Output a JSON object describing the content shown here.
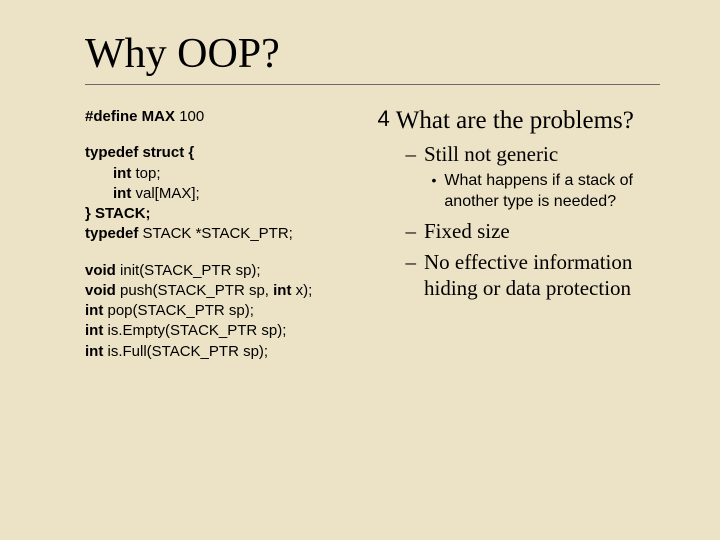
{
  "colors": {
    "background": "#ece2c6",
    "text": "#000000",
    "rule": "#6b6b6b"
  },
  "typography": {
    "title_font": "Times New Roman",
    "title_size_pt": 42,
    "code_font": "Arial",
    "code_size_pt": 15,
    "bullet_l1_font": "Times New Roman",
    "bullet_l1_size_pt": 25,
    "bullet_l2_font": "Times New Roman",
    "bullet_l2_size_pt": 21,
    "bullet_l3_font": "Arial",
    "bullet_l3_size_pt": 16
  },
  "title": "Why OOP?",
  "code": {
    "block1": {
      "l1a": "#define MAX ",
      "l1b": "100"
    },
    "block2": {
      "l1": "typedef struct {",
      "l2a": "int ",
      "l2b": "top;",
      "l3a": "int ",
      "l3b": "val[MAX];",
      "l4": "} STACK;",
      "l5a": "typedef ",
      "l5b": "STACK *STACK_PTR;"
    },
    "block3": {
      "l1a": "void ",
      "l1b": "init(STACK_PTR sp);",
      "l2a": "void ",
      "l2b": "push(STACK_PTR sp, ",
      "l2c": "int ",
      "l2d": "x);",
      "l3a": "int ",
      "l3b": "pop(STACK_PTR sp);",
      "l4a": "int ",
      "l4b": "is.Empty(STACK_PTR sp);",
      "l5a": "int ",
      "l5b": "is.Full(STACK_PTR sp);"
    }
  },
  "bullets": {
    "heading": "What are the problems?",
    "sub1": "Still not generic",
    "sub1a": "What happens if a stack of another type is needed?",
    "sub2": "Fixed size",
    "sub3": "No effective information hiding or data protection"
  },
  "markers": {
    "check": "4",
    "dash": "–",
    "dot": "•"
  }
}
